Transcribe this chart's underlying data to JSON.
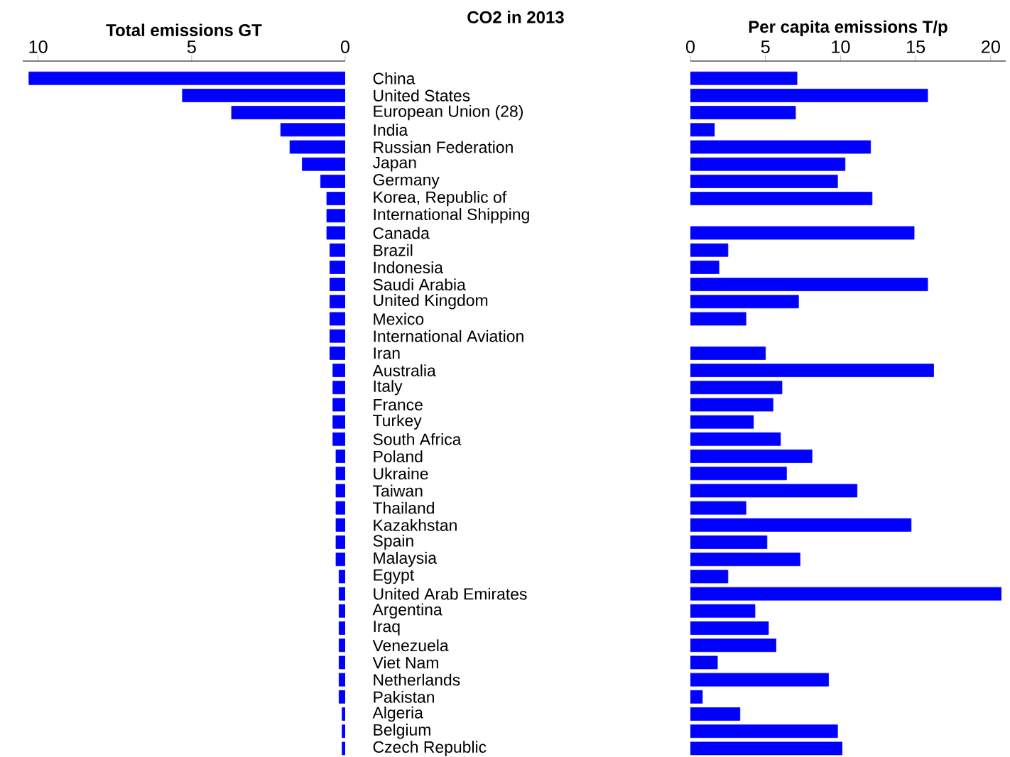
{
  "chart_data": [
    {
      "type": "bar",
      "orientation": "horizontal",
      "title": "CO2 in 2013",
      "xlabel": "Total emissions GT",
      "color": "#0000ff",
      "categories": [
        "China",
        "United States",
        "European Union (28)",
        "India",
        "Russian Federation",
        "Japan",
        "Germany",
        "Korea, Republic of",
        "International Shipping",
        "Canada",
        "Brazil",
        "Indonesia",
        "Saudi Arabia",
        "United Kingdom",
        "Mexico",
        "International Aviation",
        "Iran",
        "Australia",
        "Italy",
        "France",
        "Turkey",
        "South Africa",
        "Poland",
        "Ukraine",
        "Taiwan",
        "Thailand",
        "Kazakhstan",
        "Spain",
        "Malaysia",
        "Egypt",
        "United Arab Emirates",
        "Argentina",
        "Iraq",
        "Venezuela",
        "Viet Nam",
        "Netherlands",
        "Pakistan",
        "Algeria",
        "Belgium",
        "Czech Republic"
      ],
      "values": [
        10.3,
        5.3,
        3.7,
        2.1,
        1.8,
        1.4,
        0.8,
        0.6,
        0.6,
        0.6,
        0.5,
        0.5,
        0.5,
        0.5,
        0.5,
        0.5,
        0.5,
        0.4,
        0.4,
        0.4,
        0.4,
        0.4,
        0.3,
        0.3,
        0.3,
        0.3,
        0.3,
        0.3,
        0.3,
        0.2,
        0.2,
        0.2,
        0.2,
        0.2,
        0.2,
        0.2,
        0.2,
        0.1,
        0.1,
        0.1
      ],
      "xlim": [
        10.5,
        0
      ],
      "xticks": [
        10,
        5,
        0
      ]
    },
    {
      "type": "bar",
      "orientation": "horizontal",
      "xlabel": "Per capita emissions T/p",
      "color": "#0000ff",
      "categories": [
        null,
        null,
        null,
        null,
        null,
        null,
        null,
        null,
        null,
        null,
        null,
        null,
        null,
        null,
        null,
        null,
        null,
        null,
        null,
        null,
        null,
        null,
        null,
        null,
        null,
        null,
        null,
        null,
        null,
        null,
        null,
        null,
        null,
        null,
        null,
        null,
        null,
        null,
        null,
        null
      ],
      "values": [
        7.1,
        15.8,
        7.0,
        1.6,
        12.0,
        10.3,
        9.8,
        12.1,
        null,
        14.9,
        2.5,
        1.9,
        15.8,
        7.2,
        3.7,
        null,
        5.0,
        16.2,
        6.1,
        5.5,
        4.2,
        6.0,
        8.1,
        6.4,
        11.1,
        3.7,
        14.7,
        5.1,
        7.3,
        2.5,
        20.7,
        4.3,
        5.2,
        5.7,
        1.8,
        9.2,
        0.8,
        3.3,
        9.8,
        10.1
      ],
      "xlim": [
        0,
        21
      ],
      "xticks": [
        0,
        5,
        10,
        15,
        20
      ]
    }
  ]
}
